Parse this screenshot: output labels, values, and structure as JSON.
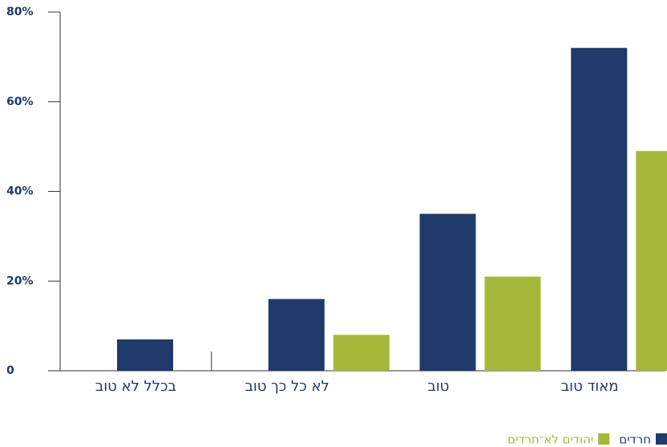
{
  "chart_data": {
    "type": "bar",
    "categories": [
      "בכלל לא טוב",
      "לא כל כך טוב",
      "טוב",
      "מאוד טוב"
    ],
    "series": [
      {
        "name": "חרדים",
        "color": "#1f3a6b",
        "values": [
          7,
          16,
          35,
          72
        ]
      },
      {
        "name": "יהודים לא־חרדים",
        "color": "#a6b83a",
        "values": [
          0,
          8,
          21,
          49
        ]
      }
    ],
    "ylim": [
      0,
      80
    ],
    "yticks": [
      0,
      {
        "value": 20,
        "label": "20%"
      },
      {
        "value": 40,
        "label": "40%"
      },
      {
        "value": 60,
        "label": "60%"
      },
      {
        "value": 80,
        "label": "80%"
      }
    ],
    "legend": "bottom-right"
  }
}
